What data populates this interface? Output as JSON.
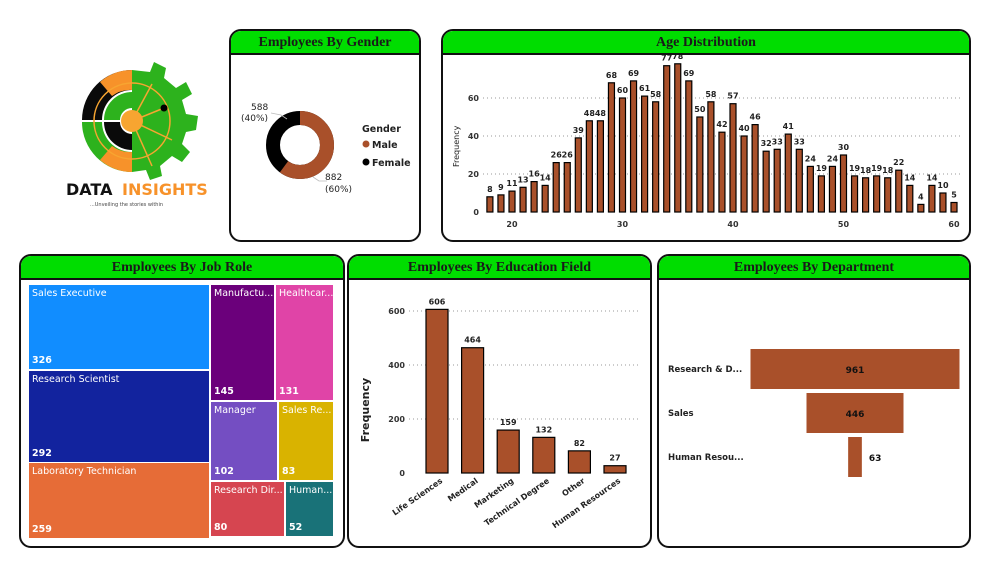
{
  "logo": {
    "title_a": "DATA",
    "title_b": "INSIGHTS",
    "tagline": "...Unveiling the stories within",
    "colors": {
      "green": "#2db21d",
      "orange": "#f7922a",
      "black": "#0a0a0a"
    }
  },
  "colors": {
    "header": "#00dd00",
    "bar": "#a9502a",
    "female": "#000000",
    "male": "#a9502a"
  },
  "chart_data": [
    {
      "type": "pie",
      "title": "Employees By Gender",
      "legend_title": "Gender",
      "legend_position": "right",
      "slices": [
        {
          "name": "Male",
          "value": 882,
          "label": "882",
          "pct": "(60%)",
          "color": "#a9502a"
        },
        {
          "name": "Female",
          "value": 588,
          "label": "588",
          "pct": "(40%)",
          "color": "#000000"
        }
      ]
    },
    {
      "type": "bar",
      "title": "Age Distribution",
      "ylabel": "Frequency",
      "xlabel": "",
      "ylim": [
        0,
        78
      ],
      "grid": true,
      "x": [
        18,
        19,
        20,
        21,
        22,
        23,
        24,
        25,
        26,
        27,
        28,
        29,
        30,
        31,
        32,
        33,
        34,
        35,
        36,
        37,
        38,
        39,
        40,
        41,
        42,
        43,
        44,
        45,
        46,
        47,
        48,
        49,
        50,
        51,
        52,
        53,
        54,
        55,
        56,
        57,
        58,
        59,
        60
      ],
      "values": [
        8,
        9,
        11,
        13,
        16,
        14,
        26,
        26,
        39,
        48,
        48,
        68,
        60,
        69,
        61,
        58,
        77,
        78,
        69,
        50,
        58,
        42,
        57,
        40,
        46,
        32,
        33,
        41,
        33,
        24,
        19,
        24,
        30,
        19,
        18,
        19,
        18,
        22,
        14,
        4,
        14,
        10,
        5
      ],
      "xticks": [
        20,
        30,
        40,
        50,
        60
      ],
      "yticks": [
        0,
        20,
        40,
        60
      ]
    },
    {
      "type": "treemap",
      "title": "Employees By Job Role",
      "items": [
        {
          "label": "Sales Executive",
          "value": 326,
          "color": "#118dff"
        },
        {
          "label": "Research Scientist",
          "value": 292,
          "color": "#12239e"
        },
        {
          "label": "Laboratory Technician",
          "value": 259,
          "color": "#e66c37"
        },
        {
          "label": "Manufactu...",
          "value": 145,
          "color": "#6b007b"
        },
        {
          "label": "Healthcar...",
          "value": 131,
          "color": "#e044a7"
        },
        {
          "label": "Manager",
          "value": 102,
          "color": "#744ec2"
        },
        {
          "label": "Sales Re...",
          "value": 83,
          "color": "#d9b300"
        },
        {
          "label": "Research Dir...",
          "value": 80,
          "color": "#d64550"
        },
        {
          "label": "Human...",
          "value": 52,
          "color": "#197278"
        }
      ]
    },
    {
      "type": "bar",
      "title": "Employees By Education Field",
      "ylabel": "Frequency",
      "ylim": [
        0,
        600
      ],
      "grid": true,
      "yticks": [
        0,
        200,
        400,
        600
      ],
      "categories": [
        "Life Sciences",
        "Medical",
        "Marketing",
        "Technical Degree",
        "Other",
        "Human Resources"
      ],
      "values": [
        606,
        464,
        159,
        132,
        82,
        27
      ]
    },
    {
      "type": "bar",
      "orientation": "horizontal-funnel",
      "title": "Employees By Department",
      "categories": [
        "Research & D...",
        "Sales",
        "Human Resou..."
      ],
      "values": [
        961,
        446,
        63
      ]
    }
  ]
}
